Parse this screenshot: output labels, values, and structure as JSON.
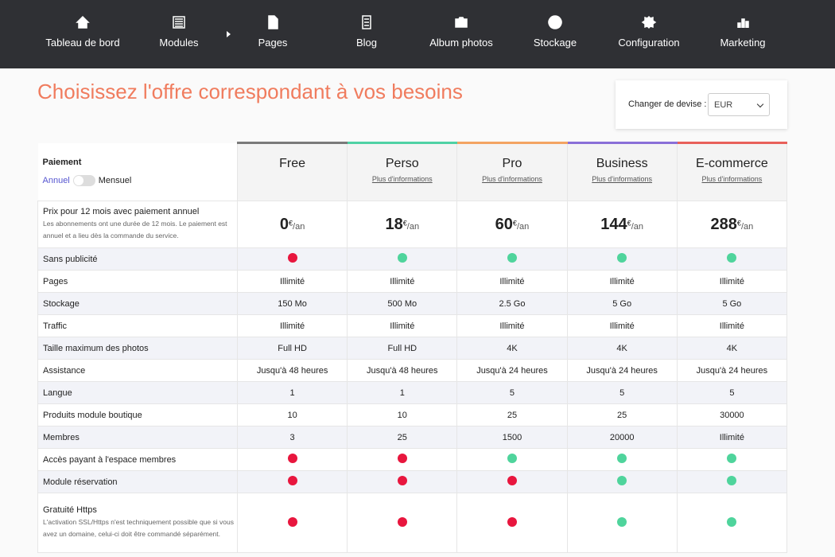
{
  "nav": {
    "items": [
      "Tableau de bord",
      "Modules",
      "Pages",
      "Blog",
      "Album photos",
      "Stockage",
      "Configuration",
      "Marketing"
    ]
  },
  "header": {
    "title": "Choisissez l'offre correspondant à vos besoins"
  },
  "currency": {
    "label": "Changer de devise :",
    "selected": "EUR"
  },
  "payment": {
    "label": "Paiement",
    "annual": "Annuel",
    "monthly": "Mensuel"
  },
  "plans": [
    {
      "name": "Free",
      "color": "#7a7a7a"
    },
    {
      "name": "Perso",
      "color": "#4fd1a5",
      "info": "Plus d'informations"
    },
    {
      "name": "Pro",
      "color": "#f3a462",
      "info": "Plus d'informations"
    },
    {
      "name": "Business",
      "color": "#8a6fd8",
      "info": "Plus d'informations"
    },
    {
      "name": "E-commerce",
      "color": "#e8605a",
      "info": "Plus d'informations"
    }
  ],
  "price": {
    "label": "Prix pour 12 mois avec paiement annuel",
    "note": "Les abonnements ont une durée de 12 mois. Le paiement est annuel et a lieu dès la commande du service.",
    "values": [
      0,
      18,
      60,
      144,
      288
    ],
    "currency": "€",
    "period": "/an"
  },
  "rows": [
    {
      "label": "Sans publicité",
      "cells": [
        false,
        true,
        true,
        true,
        true
      ]
    },
    {
      "label": "Pages",
      "cells": [
        "Illimité",
        "Illimité",
        "Illimité",
        "Illimité",
        "Illimité"
      ]
    },
    {
      "label": "Stockage",
      "cells": [
        "150 Mo",
        "500 Mo",
        "2.5 Go",
        "5 Go",
        "5 Go"
      ]
    },
    {
      "label": "Traffic",
      "cells": [
        "Illimité",
        "Illimité",
        "Illimité",
        "Illimité",
        "Illimité"
      ]
    },
    {
      "label": "Taille maximum des photos",
      "cells": [
        "Full HD",
        "Full HD",
        "4K",
        "4K",
        "4K"
      ]
    },
    {
      "label": "Assistance",
      "cells": [
        "Jusqu'à 48 heures",
        "Jusqu'à 48 heures",
        "Jusqu'à 24 heures",
        "Jusqu'à 24 heures",
        "Jusqu'à 24 heures"
      ]
    },
    {
      "label": "Langue",
      "cells": [
        1,
        1,
        5,
        5,
        5
      ]
    },
    {
      "label": "Produits module boutique",
      "cells": [
        10,
        10,
        25,
        25,
        30000
      ]
    },
    {
      "label": "Membres",
      "cells": [
        3,
        25,
        1500,
        20000,
        "Illimité"
      ]
    },
    {
      "label": "Accès payant à l'espace membres",
      "cells": [
        false,
        false,
        true,
        true,
        true
      ]
    },
    {
      "label": "Module réservation",
      "cells": [
        false,
        false,
        false,
        true,
        true
      ]
    },
    {
      "label": "Gratuité Https",
      "note": "L'activation SSL/Https n'est techniquement possible que si vous avez un domaine, celui-ci doit être commandé séparément.",
      "cells": [
        false,
        false,
        false,
        true,
        true
      ]
    }
  ]
}
